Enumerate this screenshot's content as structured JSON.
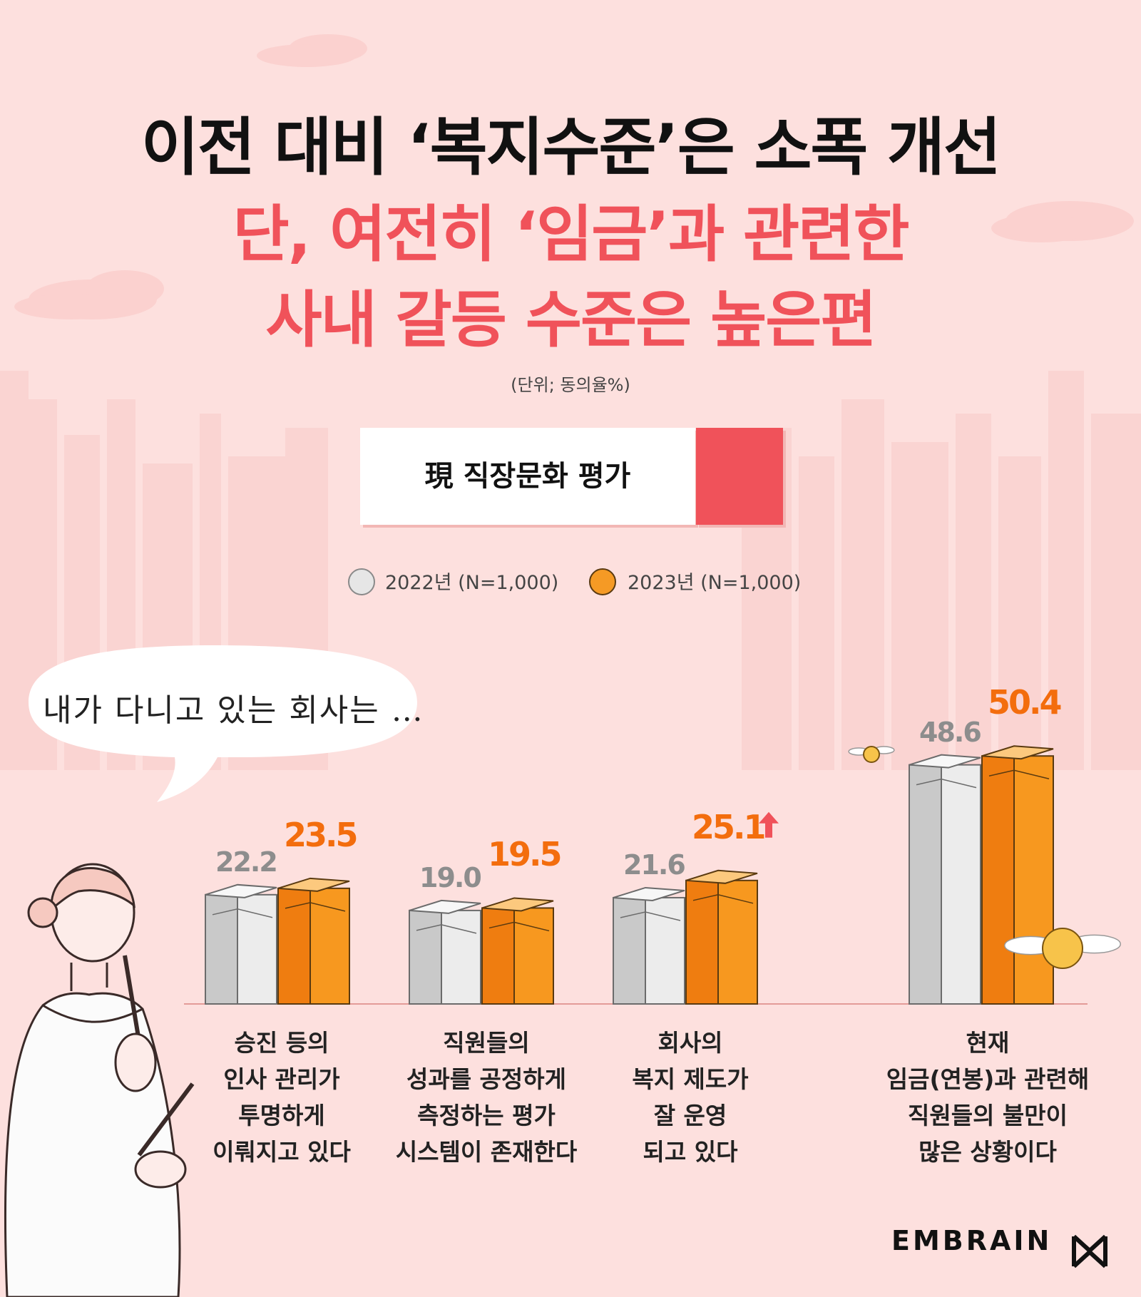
{
  "title": {
    "line1": "이전 대비 ‘복지수준’은 소폭 개선",
    "line2": "단, 여전히 ‘임금’과 관련한",
    "line3": "사내 갈등 수준은 높은편"
  },
  "unit_note": "(단위; 동의율%)",
  "section_label": "現 직장문화 평가",
  "speech_bubble": "내가 다니고 있는 회사는 …",
  "brand": "EMBRAIN",
  "colors": {
    "background": "#fde0de",
    "accent_red": "#f0525a",
    "series_2022": "#e6e6e6",
    "series_2023": "#f59a25",
    "value_2023": "#f36d0d",
    "up_arrow": "#f0525a"
  },
  "chart_data": {
    "type": "bar",
    "title": "現 직장문화 평가",
    "unit": "(단위; 동의율%)",
    "legend_position": "top-center",
    "grid": false,
    "categories": [
      [
        "승진 등의",
        "인사 관리가",
        "투명하게",
        "이뤄지고 있다"
      ],
      [
        "직원들의",
        "성과를 공정하게",
        "측정하는 평가",
        "시스템이 존재한다"
      ],
      [
        "회사의",
        "복지 제도가",
        "잘 운영",
        "되고 있다"
      ],
      [
        "현재",
        "임금(연봉)과 관련해",
        "직원들의 불만이",
        "많은 상황이다"
      ]
    ],
    "series": [
      {
        "name": "2022년 (N=1,000)",
        "values": [
          22.2,
          19.0,
          21.6,
          48.6
        ],
        "labels": [
          "22.2",
          "19.0",
          "21.6",
          "48.6"
        ]
      },
      {
        "name": "2023년 (N=1,000)",
        "values": [
          23.5,
          19.5,
          25.1,
          50.4
        ],
        "labels": [
          "23.5",
          "19.5",
          "25.1",
          "50.4"
        ]
      }
    ],
    "highlight": {
      "category_index": 2,
      "series_index": 1,
      "marker": "up-arrow"
    }
  }
}
